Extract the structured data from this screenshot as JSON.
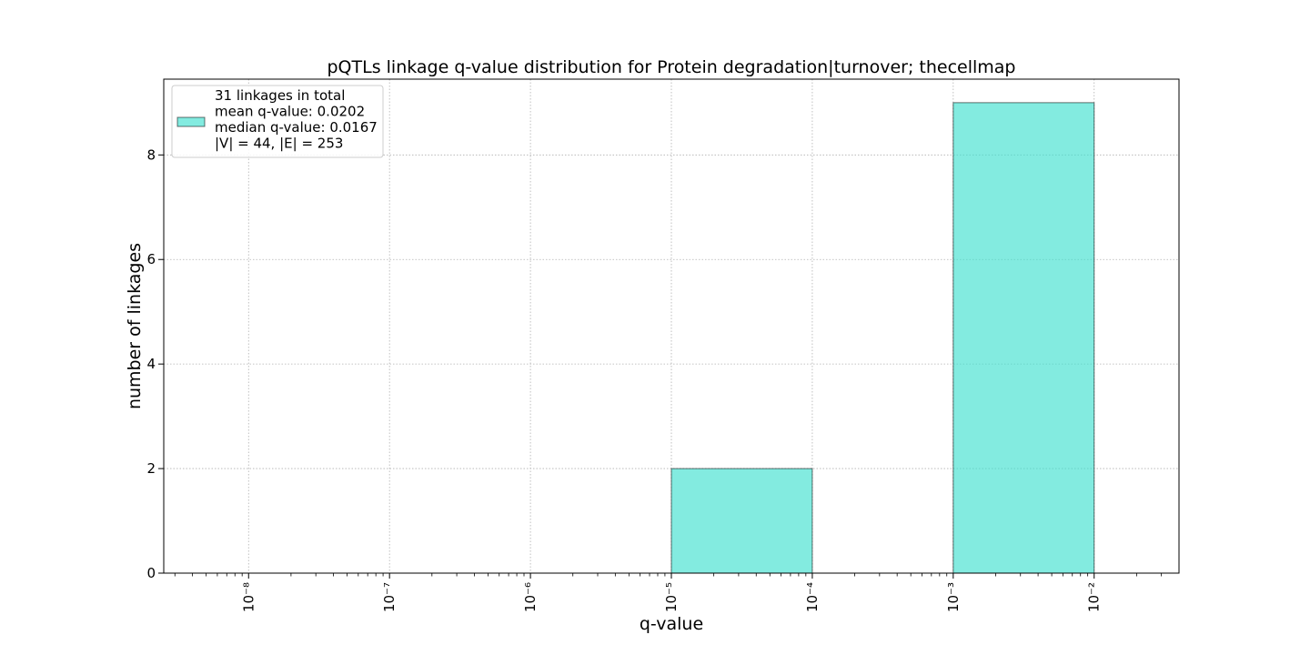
{
  "chart_data": {
    "type": "bar",
    "title": "pQTLs linkage q-value distribution for Protein degradation|turnover; thecellmap",
    "xlabel": "q-value",
    "ylabel": "number of linkages",
    "x_scale": "log",
    "xlim": [
      2.5e-09,
      0.04
    ],
    "ylim": [
      0,
      9.45
    ],
    "grid": true,
    "bar_color": "#40e0d0",
    "bar_edge_color": "#000000",
    "x_ticks": [
      {
        "value": 1e-08,
        "label": "10⁻⁸"
      },
      {
        "value": 1e-07,
        "label": "10⁻⁷"
      },
      {
        "value": 1e-06,
        "label": "10⁻⁶"
      },
      {
        "value": 1e-05,
        "label": "10⁻⁵"
      },
      {
        "value": 0.0001,
        "label": "10⁻⁴"
      },
      {
        "value": 0.001,
        "label": "10⁻³"
      },
      {
        "value": 0.01,
        "label": "10⁻²"
      }
    ],
    "y_ticks": [
      {
        "value": 0,
        "label": "0"
      },
      {
        "value": 2,
        "label": "2"
      },
      {
        "value": 4,
        "label": "4"
      },
      {
        "value": 6,
        "label": "6"
      },
      {
        "value": 8,
        "label": "8"
      }
    ],
    "bins": [
      {
        "start": 1e-08,
        "end": 1e-07,
        "count": 0
      },
      {
        "start": 1e-07,
        "end": 1e-06,
        "count": 0
      },
      {
        "start": 1e-06,
        "end": 1e-05,
        "count": 0
      },
      {
        "start": 1e-05,
        "end": 0.0001,
        "count": 2
      },
      {
        "start": 0.0001,
        "end": 0.001,
        "count": 0
      },
      {
        "start": 0.001,
        "end": 0.01,
        "count": 9
      }
    ],
    "legend": {
      "placement": "upper-left",
      "lines": [
        "31 linkages in total",
        "mean q-value: 0.0202",
        "median q-value: 0.0167",
        "|V| = 44, |E| = 253"
      ]
    }
  }
}
